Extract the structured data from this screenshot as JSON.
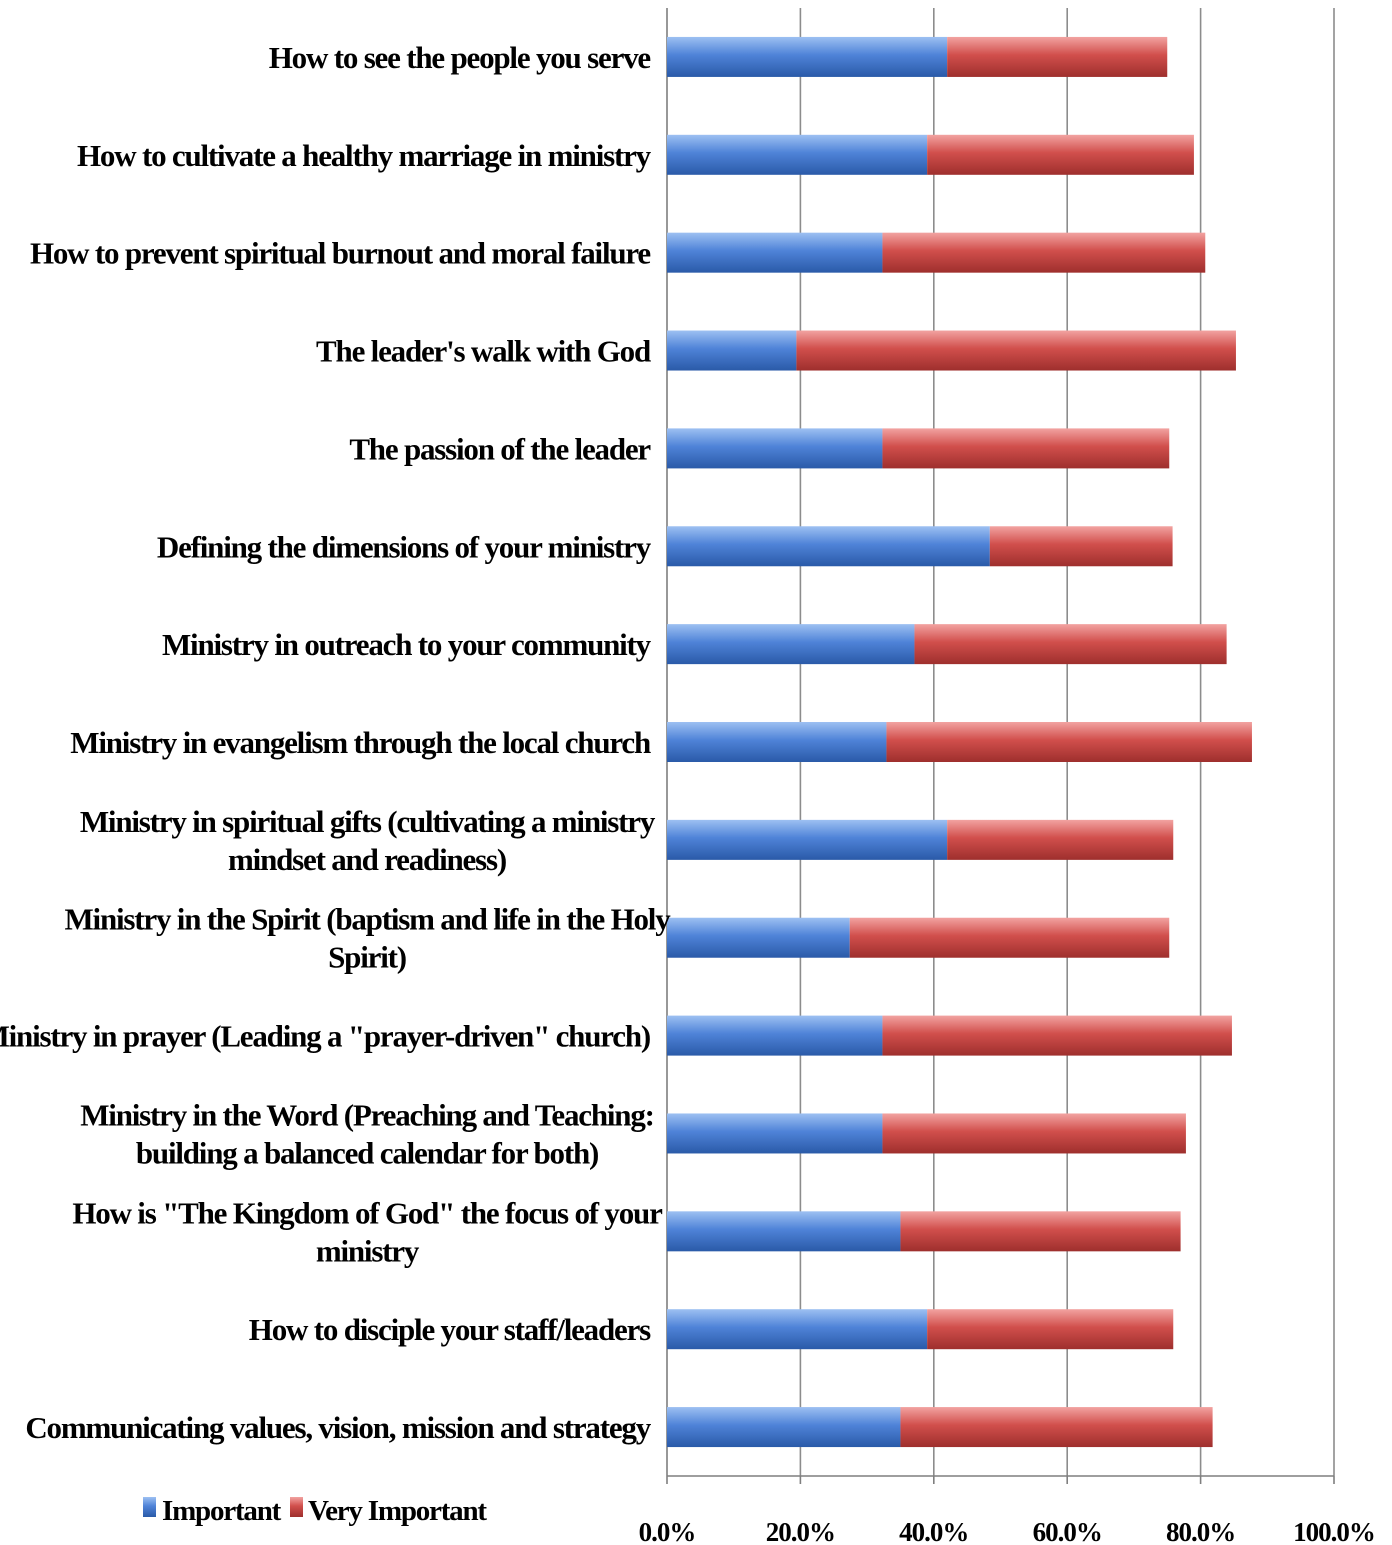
{
  "chart_data": {
    "type": "bar",
    "orientation": "horizontal",
    "stacked": true,
    "title": "",
    "xlabel": "",
    "ylabel": "",
    "xlim": [
      0,
      100
    ],
    "grid": true,
    "legend_position": "bottom-left",
    "x_ticks": [
      "0.0%",
      "20.0%",
      "40.0%",
      "60.0%",
      "80.0%",
      "100.0%"
    ],
    "categories": [
      "How to see the people you serve",
      "How to cultivate a healthy marriage in ministry",
      "How to prevent spiritual burnout and moral failure",
      "The leader's walk with God",
      "The passion of the leader",
      "Defining the dimensions of your  ministry",
      "Ministry in outreach to your community",
      "Ministry in evangelism through the local church",
      "Ministry in spiritual gifts (cultivating a ministry mindset and readiness)",
      "Ministry in the Spirit (baptism and life in the Holy Spirit)",
      "Ministry in prayer (Leading a \"prayer-driven\" church)",
      "Ministry in the Word (Preaching and Teaching: building a balanced calendar for both)",
      "How is \"The Kingdom of God\" the focus of your ministry",
      "How to disciple your staff/leaders",
      "Communicating values, vision, mission and strategy"
    ],
    "category_lines": [
      [
        "How to see the people you serve"
      ],
      [
        "How to cultivate a healthy marriage in ministry"
      ],
      [
        "How to prevent spiritual burnout and moral failure"
      ],
      [
        "The leader's walk with God"
      ],
      [
        "The passion of the leader"
      ],
      [
        "Defining the dimensions of your  ministry"
      ],
      [
        "Ministry in outreach to your community"
      ],
      [
        "Ministry in evangelism through the local church"
      ],
      [
        "Ministry in spiritual gifts (cultivating a ministry",
        "mindset and readiness)"
      ],
      [
        "Ministry in the Spirit (baptism and life in the Holy",
        "Spirit)"
      ],
      [
        "Ministry in prayer (Leading a \"prayer-driven\" church)"
      ],
      [
        "Ministry in the Word (Preaching and Teaching:",
        "building a balanced calendar for both)"
      ],
      [
        "How is \"The Kingdom of God\" the focus of your",
        "ministry"
      ],
      [
        "How to disciple your staff/leaders"
      ],
      [
        "Communicating values, vision, mission and strategy"
      ]
    ],
    "series": [
      {
        "name": "Important",
        "color": "#4472c4",
        "values": [
          42.0,
          39.0,
          32.3,
          19.4,
          32.3,
          48.4,
          37.1,
          32.9,
          42.0,
          27.4,
          32.3,
          32.3,
          35.0,
          39.0,
          35.0
        ]
      },
      {
        "name": "Very Important",
        "color": "#c0504d",
        "values": [
          33.0,
          40.0,
          48.4,
          65.9,
          43.0,
          27.4,
          46.8,
          54.8,
          33.9,
          47.9,
          52.4,
          45.5,
          42.0,
          36.9,
          46.8
        ]
      }
    ]
  }
}
